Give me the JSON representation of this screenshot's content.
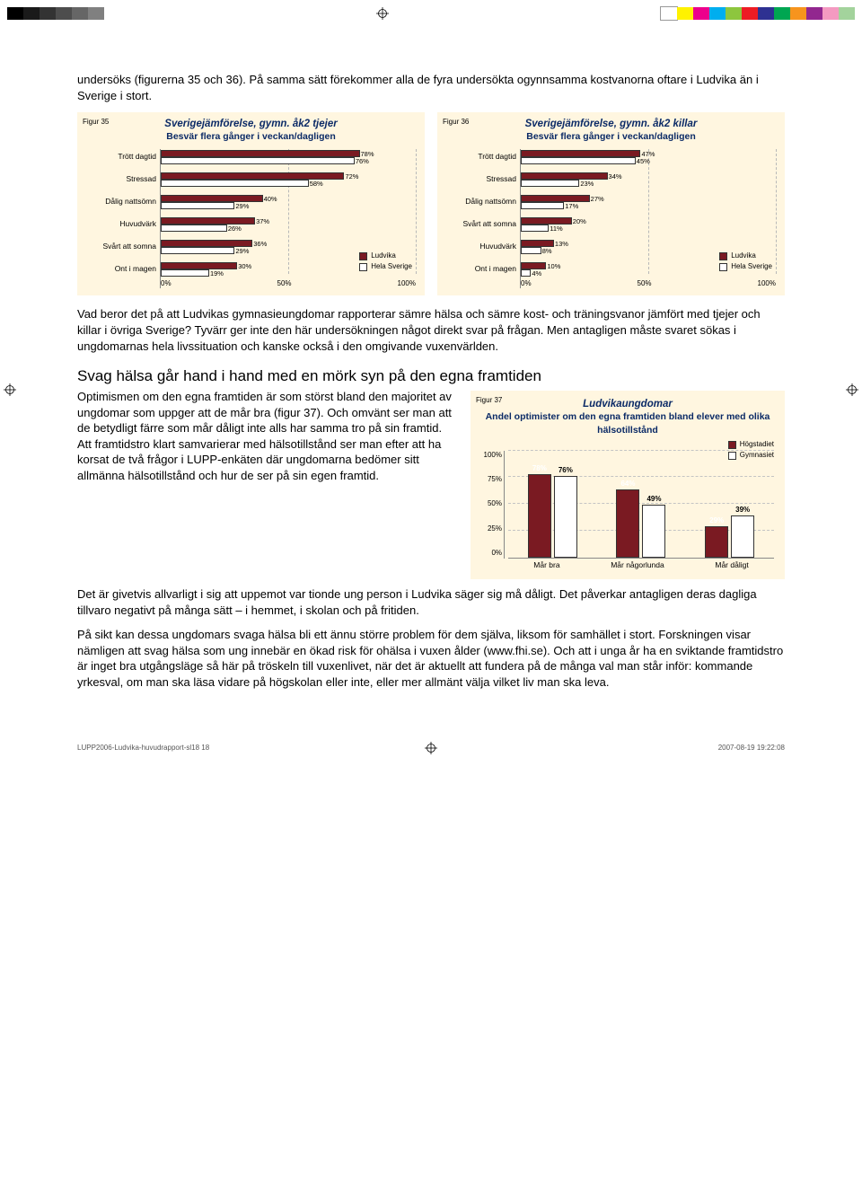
{
  "colors": {
    "ludvika": "#7a1a22",
    "sverige": "#ffffff",
    "chart_bg": "#fff6e0",
    "title_blue": "#0b2a66",
    "grid": "#b8b8b8",
    "bar_border": "#333333",
    "tone_strip": [
      "#000000",
      "#1a1a1a",
      "#333333",
      "#4d4d4d",
      "#666666",
      "#808080"
    ],
    "color_strip": [
      "#ffffff",
      "#fff200",
      "#ec008c",
      "#00aeef",
      "#8dc63e",
      "#ed1c24",
      "#2e3192",
      "#00a651",
      "#f7941d",
      "#92278f",
      "#f49ac1",
      "#a3d39c"
    ]
  },
  "intro_paragraph": "undersöks (figurerna 35 och 36). På samma sätt förekommer alla de fyra undersökta ogynnsamma kostvanorna oftare i Ludvika än i Sverige i stort.",
  "fig35": {
    "label": "Figur 35",
    "title": "Sverigejämförelse, gymn. åk2 tjejer",
    "subtitle": "Besvär flera gånger i veckan/dagligen",
    "categories": [
      "Trött dagtid",
      "Stressad",
      "Dålig nattsömn",
      "Huvudvärk",
      "Svårt att somna",
      "Ont i magen"
    ],
    "ludvika": [
      78,
      72,
      40,
      37,
      36,
      30
    ],
    "sverige": [
      76,
      58,
      29,
      26,
      29,
      19
    ],
    "xticks": [
      "0%",
      "50%",
      "100%"
    ],
    "legend": [
      "Ludvika",
      "Hela Sverige"
    ]
  },
  "fig36": {
    "label": "Figur 36",
    "title": "Sverigejämförelse, gymn. åk2 killar",
    "subtitle": "Besvär flera gånger i veckan/dagligen",
    "categories": [
      "Trött dagtid",
      "Stressad",
      "Dålig nattsömn",
      "Svårt att somna",
      "Huvudvärk",
      "Ont i magen"
    ],
    "ludvika": [
      47,
      34,
      27,
      20,
      13,
      10
    ],
    "sverige": [
      45,
      23,
      17,
      11,
      8,
      4
    ],
    "xticks": [
      "0%",
      "50%",
      "100%"
    ],
    "legend": [
      "Ludvika",
      "Hela Sverige"
    ]
  },
  "para_after_charts": "Vad beror det på att Ludvikas gymnasieungdomar rapporterar sämre hälsa och sämre kost- och träningsvanor jämfört med tjejer och killar i övriga Sverige? Tyvärr ger inte den här undersökningen något direkt svar på frågan. Men antagligen måste svaret sökas i ungdomarnas hela livssituation och kanske också i den omgivande vuxen­världen.",
  "heading": "Svag hälsa går hand i hand med en mörk syn på den egna framtiden",
  "para_wrap": "Optimismen om den egna framtiden är som störst bland den majoritet av ungdomar som uppger att de mår bra (figur 37). Och omvänt ser man att de betydligt färre som mår dåligt inte alls har samma tro på sin framtid. Att framtidstro klart samvarierar med hälsotillstånd ser man efter att ha korsat de två frågor i LUPP-enkäten där ungdomarna bedömer sitt allmänna hälso­tillstånd och hur de ser på sin egen framtid.",
  "fig37": {
    "label": "Figur 37",
    "title": "Ludvikaungdomar",
    "subtitle": "Andel optimister om den egna framtiden bland elever med olika hälsotillstånd",
    "categories": [
      "Mår bra",
      "Mår någorlunda",
      "Mår dåligt"
    ],
    "hogstadiet": [
      78,
      64,
      29
    ],
    "gymnasiet": [
      76,
      49,
      39
    ],
    "yticks": [
      "0%",
      "25%",
      "50%",
      "75%",
      "100%"
    ],
    "legend": [
      "Högstadiet",
      "Gymnasiet"
    ]
  },
  "para3": "Det är givetvis allvarligt i sig att uppemot var tionde ung person i Ludvika säger sig må dåligt. Det påverkar antagligen deras dagliga tillvaro negativt på många sätt – i hemmet, i skolan och på fritiden.",
  "para4": "På sikt kan dessa ungdomars svaga hälsa bli ett ännu större problem för dem själva, liksom för samhället i stort. Forskningen visar nämligen att svag hälsa som ung innebär en ökad risk för ohälsa i vuxen ålder (www.fhi.se). Och att i unga år ha en sviktande framtidstro är inget bra utgångsläge så här på tröskeln till vuxenlivet, när det är aktuellt att fundera på de många val man står inför: kommande yrkesval, om man ska läsa vidare på högskolan eller inte, eller mer allmänt välja vilket liv man ska leva.",
  "footer_left": "LUPP2006-Ludvika-huvudrapport-sl18 18",
  "footer_right": "2007-08-19  19:22:08"
}
